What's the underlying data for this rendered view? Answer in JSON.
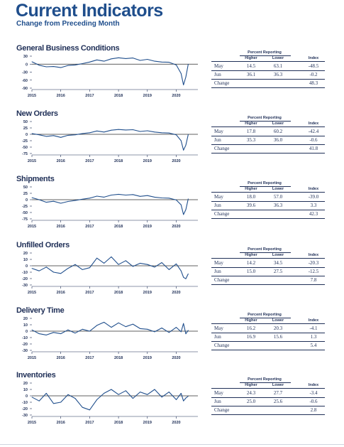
{
  "header": {
    "title": "Current Indicators",
    "subtitle": "Change from Preceding Month"
  },
  "table_labels": {
    "group_header": "Percent Reporting",
    "higher": "Higher",
    "lower": "Lower",
    "index": "Index",
    "row1": "May",
    "row2": "Jun",
    "row3": "Change"
  },
  "colors": {
    "line": "#1f4e8c",
    "text": "#1f2f57",
    "title": "#1f4e8c"
  },
  "chart_data": [
    {
      "type": "line",
      "title": "General Business Conditions",
      "x_ticks": [
        "2015",
        "2016",
        "2017",
        "2018",
        "2019",
        "2020"
      ],
      "y_ticks": [
        "30",
        "0",
        "-30",
        "-60",
        "-90"
      ],
      "ylim": [
        -90,
        30
      ],
      "x": [
        "2015-01",
        "2015-04",
        "2015-07",
        "2015-10",
        "2016-01",
        "2016-04",
        "2016-07",
        "2016-10",
        "2017-01",
        "2017-04",
        "2017-07",
        "2017-10",
        "2018-01",
        "2018-04",
        "2018-07",
        "2018-10",
        "2019-01",
        "2019-04",
        "2019-07",
        "2019-10",
        "2020-01",
        "2020-03",
        "2020-04",
        "2020-05",
        "2020-06"
      ],
      "values": [
        9,
        -4,
        -10,
        -9,
        -13,
        -5,
        -3,
        2,
        8,
        16,
        11,
        20,
        24,
        21,
        23,
        14,
        18,
        11,
        8,
        7,
        -3,
        -35,
        -78,
        -48.5,
        -0.2
      ],
      "table": {
        "may_higher": "14.5",
        "may_lower": "63.1",
        "may_index": "-48.5",
        "jun_higher": "36.1",
        "jun_lower": "36.3",
        "jun_index": "-0.2",
        "change": "48.3"
      }
    },
    {
      "type": "line",
      "title": "New Orders",
      "x_ticks": [
        "2015",
        "2016",
        "2017",
        "2018",
        "2019",
        "2020"
      ],
      "y_ticks": [
        "50",
        "25",
        "0",
        "-25",
        "-50",
        "-75"
      ],
      "ylim": [
        -75,
        50
      ],
      "x": [
        "2015-01",
        "2015-04",
        "2015-07",
        "2015-10",
        "2016-01",
        "2016-04",
        "2016-07",
        "2016-10",
        "2017-01",
        "2017-04",
        "2017-07",
        "2017-10",
        "2018-01",
        "2018-04",
        "2018-07",
        "2018-10",
        "2019-01",
        "2019-04",
        "2019-07",
        "2019-10",
        "2020-01",
        "2020-03",
        "2020-04",
        "2020-05",
        "2020-06"
      ],
      "values": [
        3,
        -2,
        -8,
        -5,
        -12,
        -4,
        -2,
        3,
        6,
        13,
        9,
        16,
        19,
        17,
        18,
        11,
        14,
        9,
        6,
        5,
        -2,
        -25,
        -62,
        -42.4,
        -0.6
      ],
      "table": {
        "may_higher": "17.8",
        "may_lower": "60.2",
        "may_index": "-42.4",
        "jun_higher": "35.3",
        "jun_lower": "36.0",
        "jun_index": "-0.6",
        "change": "41.8"
      }
    },
    {
      "type": "line",
      "title": "Shipments",
      "x_ticks": [
        "2015",
        "2016",
        "2017",
        "2018",
        "2019",
        "2020"
      ],
      "y_ticks": [
        "50",
        "25",
        "0",
        "-25",
        "-50",
        "-75"
      ],
      "ylim": [
        -75,
        50
      ],
      "x": [
        "2015-01",
        "2015-04",
        "2015-07",
        "2015-10",
        "2016-01",
        "2016-04",
        "2016-07",
        "2016-10",
        "2017-01",
        "2017-04",
        "2017-07",
        "2017-10",
        "2018-01",
        "2018-04",
        "2018-07",
        "2018-10",
        "2019-01",
        "2019-04",
        "2019-07",
        "2019-10",
        "2020-01",
        "2020-03",
        "2020-04",
        "2020-05",
        "2020-06"
      ],
      "values": [
        8,
        0,
        -10,
        -6,
        -14,
        -7,
        -3,
        2,
        6,
        14,
        10,
        18,
        21,
        18,
        20,
        13,
        16,
        10,
        7,
        6,
        -1,
        -20,
        -58,
        -39.0,
        3.3
      ],
      "table": {
        "may_higher": "18.0",
        "may_lower": "57.0",
        "may_index": "-39.0",
        "jun_higher": "39.6",
        "jun_lower": "36.3",
        "jun_index": "3.3",
        "change": "42.3"
      }
    },
    {
      "type": "line",
      "title": "Unfilled Orders",
      "x_ticks": [
        "2015",
        "2016",
        "2017",
        "2018",
        "2019",
        "2020"
      ],
      "y_ticks": [
        "20",
        "10",
        "0",
        "-10",
        "-20",
        "-30"
      ],
      "ylim": [
        -30,
        20
      ],
      "x": [
        "2015-01",
        "2015-04",
        "2015-07",
        "2015-10",
        "2016-01",
        "2016-04",
        "2016-07",
        "2016-10",
        "2017-01",
        "2017-04",
        "2017-07",
        "2017-10",
        "2018-01",
        "2018-04",
        "2018-07",
        "2018-10",
        "2019-01",
        "2019-04",
        "2019-07",
        "2019-10",
        "2020-01",
        "2020-03",
        "2020-04",
        "2020-05",
        "2020-06"
      ],
      "values": [
        -4,
        -8,
        -2,
        -10,
        -12,
        -4,
        2,
        -6,
        -3,
        12,
        4,
        14,
        2,
        8,
        -1,
        4,
        2,
        -2,
        5,
        -6,
        3,
        -8,
        -18,
        -20.3,
        -12.5
      ],
      "table": {
        "may_higher": "14.2",
        "may_lower": "34.5",
        "may_index": "-20.3",
        "jun_higher": "15.0",
        "jun_lower": "27.5",
        "jun_index": "-12.5",
        "change": "7.8"
      }
    },
    {
      "type": "line",
      "title": "Delivery Time",
      "x_ticks": [
        "2015",
        "2016",
        "2017",
        "2018",
        "2019",
        "2020"
      ],
      "y_ticks": [
        "20",
        "10",
        "0",
        "-10",
        "-20",
        "-30"
      ],
      "ylim": [
        -30,
        20
      ],
      "x": [
        "2015-01",
        "2015-04",
        "2015-07",
        "2015-10",
        "2016-01",
        "2016-04",
        "2016-07",
        "2016-10",
        "2017-01",
        "2017-04",
        "2017-07",
        "2017-10",
        "2018-01",
        "2018-04",
        "2018-07",
        "2018-10",
        "2019-01",
        "2019-04",
        "2019-07",
        "2019-10",
        "2020-01",
        "2020-03",
        "2020-04",
        "2020-05",
        "2020-06"
      ],
      "values": [
        2,
        -4,
        -6,
        -2,
        -4,
        2,
        -3,
        3,
        0,
        9,
        14,
        6,
        13,
        7,
        11,
        4,
        3,
        -1,
        5,
        -2,
        6,
        -1,
        12,
        -4.1,
        1.3
      ],
      "table": {
        "may_higher": "16.2",
        "may_lower": "20.3",
        "may_index": "-4.1",
        "jun_higher": "16.9",
        "jun_lower": "15.6",
        "jun_index": "1.3",
        "change": "5.4"
      }
    },
    {
      "type": "line",
      "title": "Inventories",
      "x_ticks": [
        "2015",
        "2016",
        "2017",
        "2018",
        "2019",
        "2020"
      ],
      "y_ticks": [
        "20",
        "10",
        "0",
        "-10",
        "-20",
        "-30"
      ],
      "ylim": [
        -30,
        20
      ],
      "x": [
        "2015-01",
        "2015-04",
        "2015-07",
        "2015-10",
        "2016-01",
        "2016-04",
        "2016-07",
        "2016-10",
        "2017-01",
        "2017-04",
        "2017-07",
        "2017-10",
        "2018-01",
        "2018-04",
        "2018-07",
        "2018-10",
        "2019-01",
        "2019-04",
        "2019-07",
        "2019-10",
        "2020-01",
        "2020-03",
        "2020-04",
        "2020-05",
        "2020-06"
      ],
      "values": [
        -2,
        -8,
        4,
        -12,
        -10,
        2,
        -4,
        -18,
        -22,
        -6,
        4,
        10,
        2,
        8,
        -4,
        6,
        2,
        10,
        -2,
        6,
        -6,
        4,
        -8,
        -3.4,
        -0.6
      ],
      "table": {
        "may_higher": "24.3",
        "may_lower": "27.7",
        "may_index": "-3.4",
        "jun_higher": "25.0",
        "jun_lower": "25.6",
        "jun_index": "-0.6",
        "change": "2.8"
      }
    }
  ]
}
